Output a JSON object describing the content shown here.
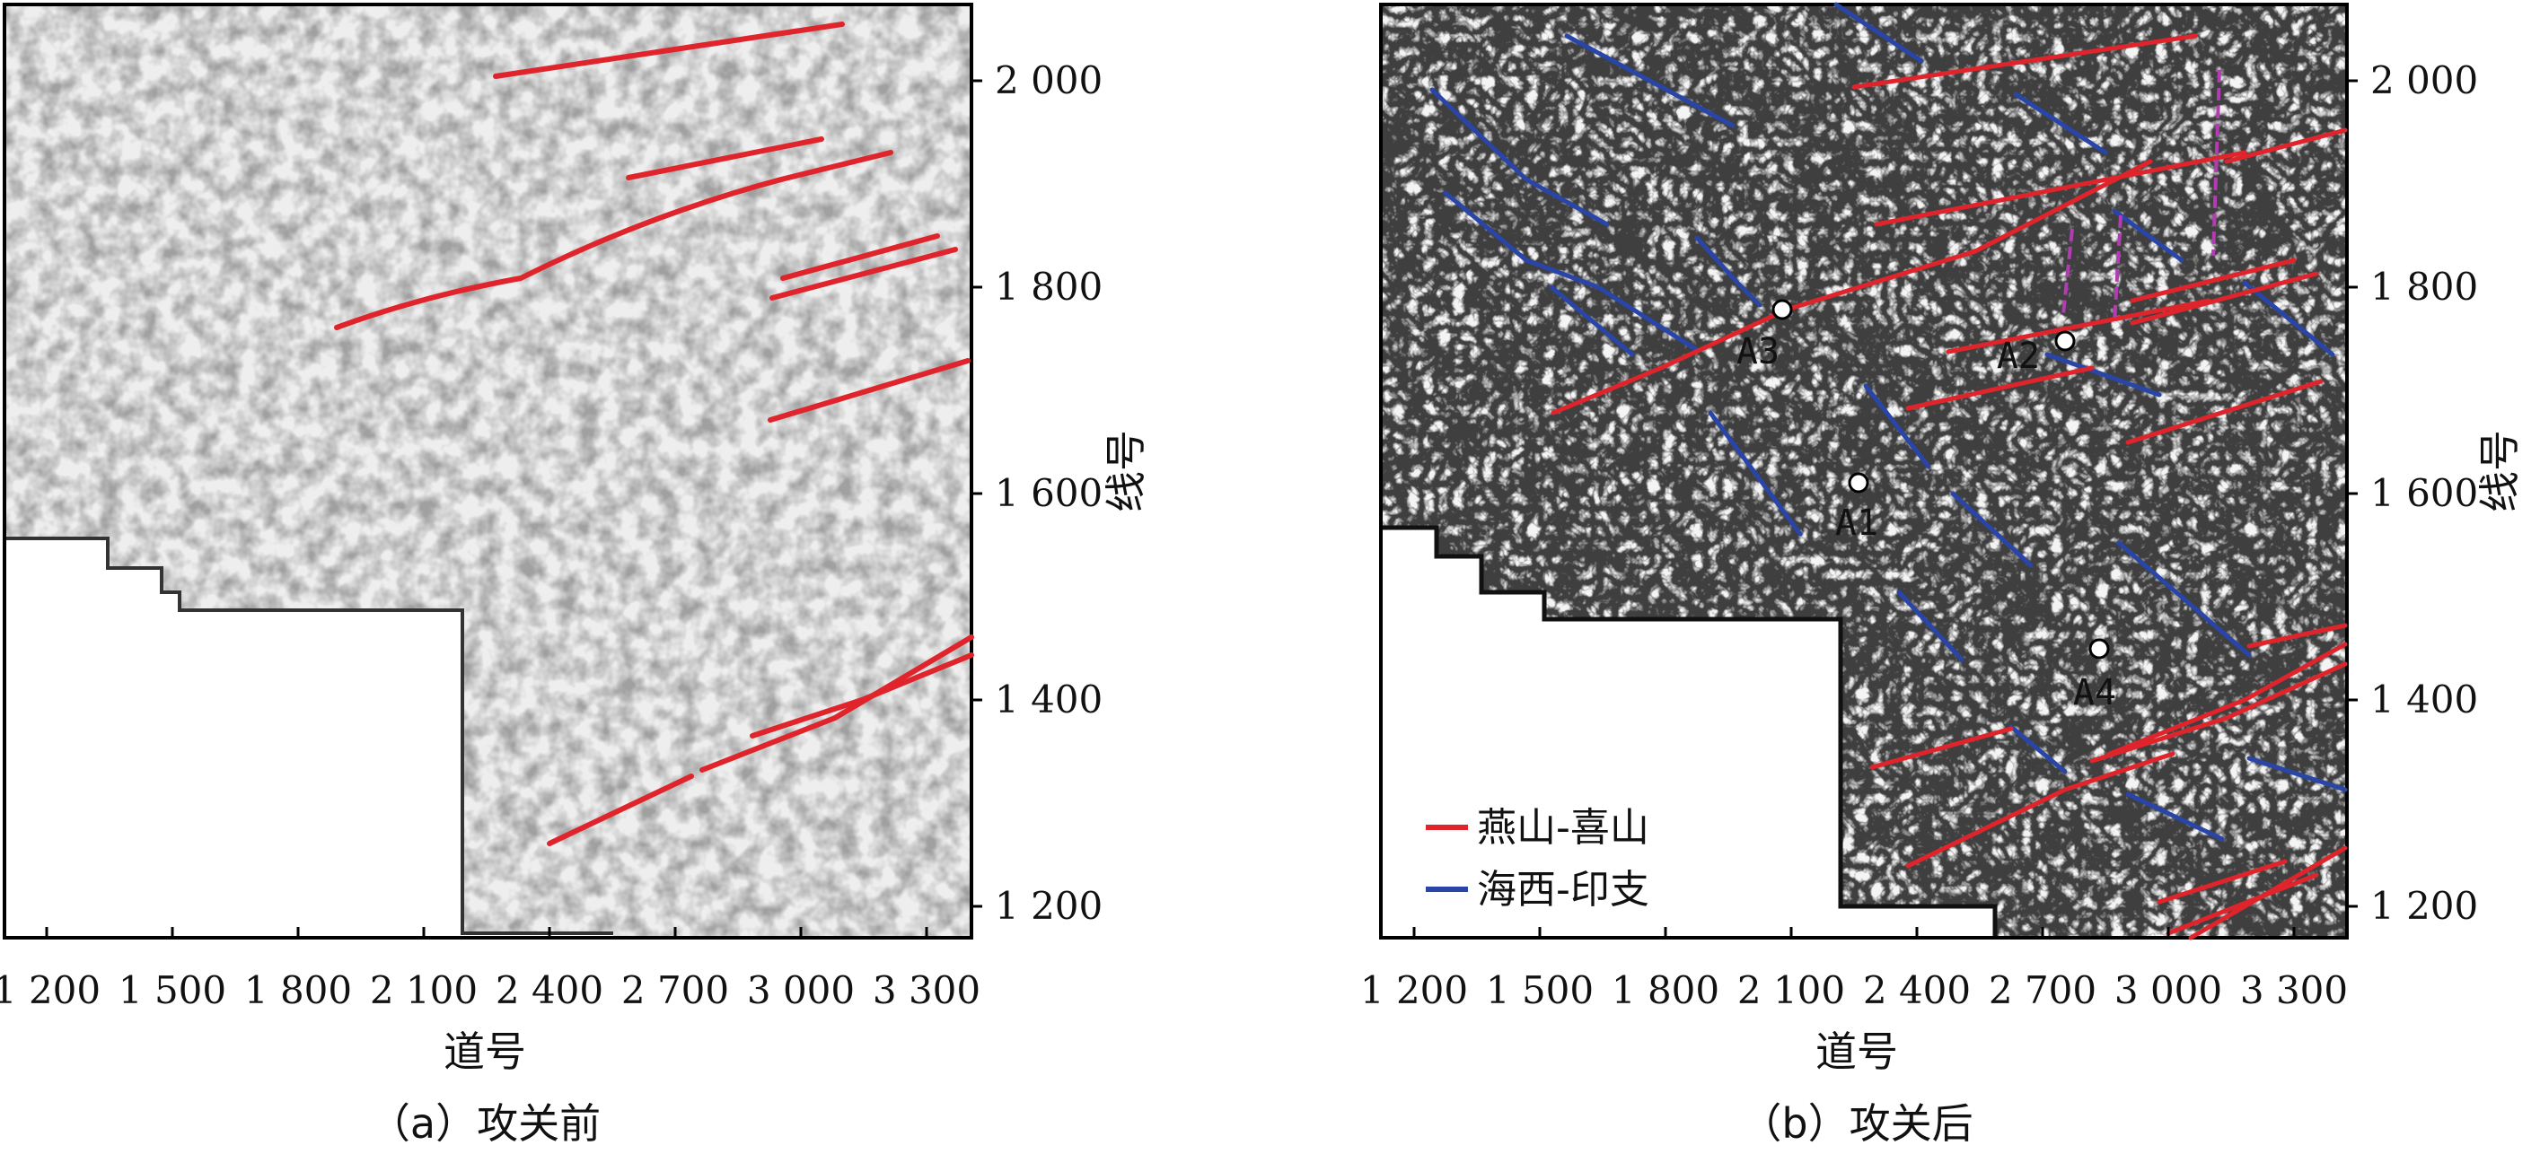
{
  "figure": {
    "axis_labels": {
      "x": "道号",
      "y": "线号"
    },
    "x_ticks": [
      "1 200",
      "1 500",
      "1 800",
      "2 100",
      "2 400",
      "2 700",
      "3 000",
      "3 300"
    ],
    "y_ticks": [
      "2 000",
      "1 800",
      "1 600",
      "1 400",
      "1 200"
    ],
    "colors": {
      "yanshan_ximalaya": "#e0242b",
      "haixi_yinzhi": "#2a45a8",
      "minor": "#b23cb2"
    }
  },
  "panel_a": {
    "caption": "（a）攻关前"
  },
  "panel_b": {
    "caption": "（b）攻关后",
    "wells": [
      "A1",
      "A2",
      "A3",
      "A4"
    ],
    "legend": [
      {
        "label": "燕山-喜山",
        "color": "#e0242b"
      },
      {
        "label": "海西-印支",
        "color": "#2a45a8"
      }
    ]
  }
}
